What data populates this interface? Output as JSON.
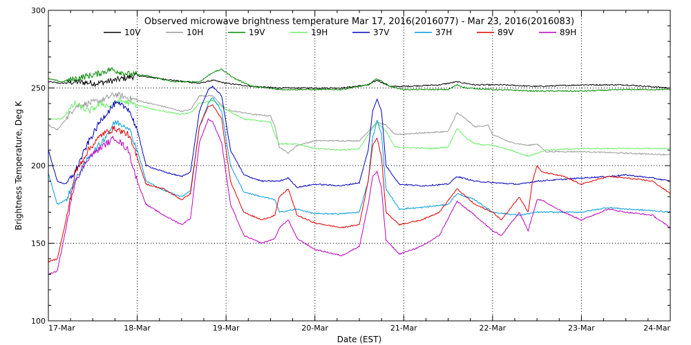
{
  "chart_data": {
    "type": "line",
    "title": "Observed microwave brightness temperature Mar 17, 2016(2016077) - Mar 23, 2016(2016083)",
    "xlabel": "Date (EST)",
    "ylabel": "Brightness Temperature, Deg K",
    "x_range_days": [
      0,
      7
    ],
    "ylim": [
      100,
      300
    ],
    "y_ticks": [
      100,
      150,
      200,
      250,
      300
    ],
    "x_tick_labels": [
      "17-Mar",
      "18-Mar",
      "19-Mar",
      "20-Mar",
      "21-Mar",
      "22-Mar",
      "23-Mar",
      "24-Mar"
    ],
    "grid": "dotted",
    "legend_position": "top",
    "series": [
      {
        "name": "10V",
        "color": "#000000",
        "points": [
          [
            0,
            254
          ],
          [
            0.15,
            253
          ],
          [
            0.3,
            254
          ],
          [
            0.55,
            253
          ],
          [
            0.75,
            255
          ],
          [
            1.0,
            258
          ],
          [
            1.4,
            255
          ],
          [
            1.7,
            253
          ],
          [
            1.85,
            255
          ],
          [
            2.0,
            253
          ],
          [
            2.3,
            251
          ],
          [
            2.6,
            250
          ],
          [
            2.9,
            250
          ],
          [
            3.3,
            250
          ],
          [
            3.6,
            252
          ],
          [
            3.7,
            255
          ],
          [
            3.85,
            251
          ],
          [
            4.0,
            251
          ],
          [
            4.4,
            252
          ],
          [
            4.6,
            254
          ],
          [
            4.8,
            252
          ],
          [
            5.1,
            252
          ],
          [
            5.5,
            251
          ],
          [
            6.0,
            252
          ],
          [
            6.5,
            252
          ],
          [
            7.0,
            250
          ]
        ]
      },
      {
        "name": "10H",
        "color": "#999999",
        "points": [
          [
            0,
            226
          ],
          [
            0.1,
            223
          ],
          [
            0.2,
            230
          ],
          [
            0.3,
            238
          ],
          [
            0.45,
            240
          ],
          [
            0.6,
            242
          ],
          [
            0.75,
            246
          ],
          [
            1.0,
            242
          ],
          [
            1.3,
            238
          ],
          [
            1.5,
            235
          ],
          [
            1.6,
            236
          ],
          [
            1.7,
            245
          ],
          [
            1.85,
            245
          ],
          [
            2.0,
            236
          ],
          [
            2.3,
            233
          ],
          [
            2.5,
            232
          ],
          [
            2.55,
            225
          ],
          [
            2.6,
            212
          ],
          [
            2.7,
            208
          ],
          [
            2.8,
            213
          ],
          [
            3.0,
            216
          ],
          [
            3.3,
            216
          ],
          [
            3.5,
            216
          ],
          [
            3.6,
            222
          ],
          [
            3.7,
            228
          ],
          [
            3.8,
            226
          ],
          [
            3.9,
            220
          ],
          [
            4.2,
            221
          ],
          [
            4.5,
            222
          ],
          [
            4.6,
            234
          ],
          [
            4.7,
            230
          ],
          [
            4.8,
            225
          ],
          [
            4.95,
            226
          ],
          [
            5.0,
            220
          ],
          [
            5.2,
            215
          ],
          [
            5.4,
            213
          ],
          [
            5.5,
            214
          ],
          [
            5.6,
            209
          ],
          [
            6.0,
            209
          ],
          [
            6.5,
            208
          ],
          [
            7.0,
            207
          ]
        ]
      },
      {
        "name": "19V",
        "color": "#008800",
        "points": [
          [
            0,
            256
          ],
          [
            0.15,
            254
          ],
          [
            0.3,
            256
          ],
          [
            0.55,
            259
          ],
          [
            0.7,
            262
          ],
          [
            0.9,
            259
          ],
          [
            1.1,
            258
          ],
          [
            1.4,
            254
          ],
          [
            1.7,
            254
          ],
          [
            1.85,
            260
          ],
          [
            1.95,
            262
          ],
          [
            2.1,
            256
          ],
          [
            2.3,
            251
          ],
          [
            2.6,
            249
          ],
          [
            3.0,
            249
          ],
          [
            3.3,
            249
          ],
          [
            3.6,
            252
          ],
          [
            3.7,
            256
          ],
          [
            3.85,
            251
          ],
          [
            4.0,
            249
          ],
          [
            4.5,
            249
          ],
          [
            4.6,
            252
          ],
          [
            4.7,
            250
          ],
          [
            5.0,
            249
          ],
          [
            5.5,
            248
          ],
          [
            6.0,
            248
          ],
          [
            6.5,
            249
          ],
          [
            7.0,
            249
          ]
        ]
      },
      {
        "name": "19H",
        "color": "#66ee66",
        "points": [
          [
            0,
            230
          ],
          [
            0.15,
            230
          ],
          [
            0.3,
            240
          ],
          [
            0.45,
            235
          ],
          [
            0.6,
            240
          ],
          [
            0.7,
            238
          ],
          [
            0.8,
            242
          ],
          [
            1.0,
            239
          ],
          [
            1.2,
            236
          ],
          [
            1.5,
            233
          ],
          [
            1.6,
            234
          ],
          [
            1.7,
            240
          ],
          [
            1.85,
            242
          ],
          [
            2.0,
            236
          ],
          [
            2.2,
            230
          ],
          [
            2.5,
            228
          ],
          [
            2.55,
            220
          ],
          [
            2.6,
            214
          ],
          [
            2.8,
            214
          ],
          [
            3.0,
            211
          ],
          [
            3.3,
            210
          ],
          [
            3.5,
            211
          ],
          [
            3.6,
            220
          ],
          [
            3.7,
            228
          ],
          [
            3.8,
            222
          ],
          [
            3.9,
            212
          ],
          [
            4.3,
            211
          ],
          [
            4.5,
            212
          ],
          [
            4.6,
            224
          ],
          [
            4.7,
            218
          ],
          [
            4.8,
            214
          ],
          [
            5.0,
            213
          ],
          [
            5.2,
            210
          ],
          [
            5.4,
            206
          ],
          [
            5.6,
            210
          ],
          [
            6.0,
            211
          ],
          [
            6.5,
            211
          ],
          [
            7.0,
            211
          ]
        ]
      },
      {
        "name": "37V",
        "color": "#0000bb",
        "points": [
          [
            0,
            210
          ],
          [
            0.1,
            190
          ],
          [
            0.2,
            188
          ],
          [
            0.3,
            196
          ],
          [
            0.45,
            215
          ],
          [
            0.6,
            230
          ],
          [
            0.75,
            240
          ],
          [
            0.9,
            237
          ],
          [
            1.0,
            223
          ],
          [
            1.1,
            200
          ],
          [
            1.3,
            196
          ],
          [
            1.5,
            193
          ],
          [
            1.6,
            196
          ],
          [
            1.7,
            235
          ],
          [
            1.8,
            249
          ],
          [
            1.85,
            251
          ],
          [
            1.95,
            245
          ],
          [
            2.05,
            210
          ],
          [
            2.2,
            194
          ],
          [
            2.4,
            190
          ],
          [
            2.6,
            190
          ],
          [
            2.7,
            192
          ],
          [
            2.8,
            186
          ],
          [
            3.0,
            188
          ],
          [
            3.3,
            187
          ],
          [
            3.5,
            189
          ],
          [
            3.6,
            210
          ],
          [
            3.65,
            235
          ],
          [
            3.7,
            243
          ],
          [
            3.75,
            235
          ],
          [
            3.8,
            200
          ],
          [
            3.95,
            188
          ],
          [
            4.2,
            187
          ],
          [
            4.5,
            188
          ],
          [
            4.6,
            193
          ],
          [
            4.8,
            190
          ],
          [
            5.0,
            189
          ],
          [
            5.3,
            188
          ],
          [
            5.5,
            190
          ],
          [
            6.0,
            192
          ],
          [
            6.3,
            193
          ],
          [
            6.5,
            194
          ],
          [
            6.8,
            192
          ],
          [
            7.0,
            190
          ]
        ]
      },
      {
        "name": "37H",
        "color": "#0099dd",
        "points": [
          [
            0,
            195
          ],
          [
            0.1,
            175
          ],
          [
            0.2,
            178
          ],
          [
            0.3,
            190
          ],
          [
            0.45,
            205
          ],
          [
            0.6,
            215
          ],
          [
            0.75,
            228
          ],
          [
            0.9,
            225
          ],
          [
            1.0,
            210
          ],
          [
            1.1,
            190
          ],
          [
            1.3,
            184
          ],
          [
            1.5,
            180
          ],
          [
            1.6,
            184
          ],
          [
            1.7,
            225
          ],
          [
            1.8,
            240
          ],
          [
            1.85,
            244
          ],
          [
            1.95,
            235
          ],
          [
            2.05,
            200
          ],
          [
            2.2,
            183
          ],
          [
            2.4,
            180
          ],
          [
            2.55,
            178
          ],
          [
            2.6,
            170
          ],
          [
            2.8,
            172
          ],
          [
            3.0,
            169
          ],
          [
            3.3,
            169
          ],
          [
            3.5,
            170
          ],
          [
            3.6,
            190
          ],
          [
            3.65,
            218
          ],
          [
            3.7,
            229
          ],
          [
            3.75,
            220
          ],
          [
            3.8,
            185
          ],
          [
            3.95,
            172
          ],
          [
            4.2,
            173
          ],
          [
            4.5,
            175
          ],
          [
            4.6,
            182
          ],
          [
            4.8,
            178
          ],
          [
            5.0,
            170
          ],
          [
            5.3,
            168
          ],
          [
            5.5,
            170
          ],
          [
            6.0,
            170
          ],
          [
            6.3,
            173
          ],
          [
            6.5,
            172
          ],
          [
            6.8,
            171
          ],
          [
            7.0,
            170
          ]
        ]
      },
      {
        "name": "89V",
        "color": "#dd0000",
        "points": [
          [
            0,
            138
          ],
          [
            0.1,
            140
          ],
          [
            0.2,
            165
          ],
          [
            0.3,
            195
          ],
          [
            0.45,
            210
          ],
          [
            0.6,
            220
          ],
          [
            0.75,
            224
          ],
          [
            0.9,
            220
          ],
          [
            1.0,
            205
          ],
          [
            1.1,
            188
          ],
          [
            1.3,
            185
          ],
          [
            1.5,
            178
          ],
          [
            1.6,
            182
          ],
          [
            1.7,
            225
          ],
          [
            1.8,
            238
          ],
          [
            1.85,
            239
          ],
          [
            1.95,
            230
          ],
          [
            2.05,
            190
          ],
          [
            2.2,
            170
          ],
          [
            2.4,
            165
          ],
          [
            2.55,
            168
          ],
          [
            2.6,
            180
          ],
          [
            2.7,
            185
          ],
          [
            2.8,
            168
          ],
          [
            3.0,
            163
          ],
          [
            3.3,
            160
          ],
          [
            3.5,
            162
          ],
          [
            3.6,
            190
          ],
          [
            3.65,
            213
          ],
          [
            3.7,
            218
          ],
          [
            3.75,
            205
          ],
          [
            3.8,
            170
          ],
          [
            3.95,
            162
          ],
          [
            4.2,
            165
          ],
          [
            4.4,
            170
          ],
          [
            4.6,
            185
          ],
          [
            4.8,
            175
          ],
          [
            5.0,
            170
          ],
          [
            5.1,
            165
          ],
          [
            5.3,
            180
          ],
          [
            5.4,
            170
          ],
          [
            5.45,
            190
          ],
          [
            5.5,
            200
          ],
          [
            5.55,
            196
          ],
          [
            5.8,
            193
          ],
          [
            6.0,
            188
          ],
          [
            6.3,
            193
          ],
          [
            6.5,
            192
          ],
          [
            6.8,
            190
          ],
          [
            7.0,
            182
          ]
        ]
      },
      {
        "name": "89H",
        "color": "#bb00bb",
        "points": [
          [
            0,
            130
          ],
          [
            0.1,
            132
          ],
          [
            0.2,
            160
          ],
          [
            0.3,
            190
          ],
          [
            0.45,
            205
          ],
          [
            0.6,
            212
          ],
          [
            0.75,
            218
          ],
          [
            0.9,
            210
          ],
          [
            1.0,
            190
          ],
          [
            1.1,
            175
          ],
          [
            1.3,
            168
          ],
          [
            1.5,
            162
          ],
          [
            1.6,
            166
          ],
          [
            1.7,
            215
          ],
          [
            1.8,
            230
          ],
          [
            1.85,
            228
          ],
          [
            1.95,
            215
          ],
          [
            2.05,
            175
          ],
          [
            2.2,
            155
          ],
          [
            2.4,
            150
          ],
          [
            2.55,
            153
          ],
          [
            2.6,
            160
          ],
          [
            2.7,
            165
          ],
          [
            2.8,
            153
          ],
          [
            3.0,
            146
          ],
          [
            3.3,
            142
          ],
          [
            3.5,
            148
          ],
          [
            3.6,
            175
          ],
          [
            3.65,
            193
          ],
          [
            3.7,
            196
          ],
          [
            3.75,
            185
          ],
          [
            3.8,
            152
          ],
          [
            3.95,
            143
          ],
          [
            4.2,
            148
          ],
          [
            4.4,
            155
          ],
          [
            4.6,
            177
          ],
          [
            4.8,
            168
          ],
          [
            5.0,
            158
          ],
          [
            5.1,
            155
          ],
          [
            5.3,
            170
          ],
          [
            5.4,
            158
          ],
          [
            5.5,
            178
          ],
          [
            5.55,
            178
          ],
          [
            5.8,
            170
          ],
          [
            6.0,
            165
          ],
          [
            6.3,
            172
          ],
          [
            6.5,
            170
          ],
          [
            6.8,
            168
          ],
          [
            7.0,
            160
          ]
        ]
      }
    ]
  }
}
